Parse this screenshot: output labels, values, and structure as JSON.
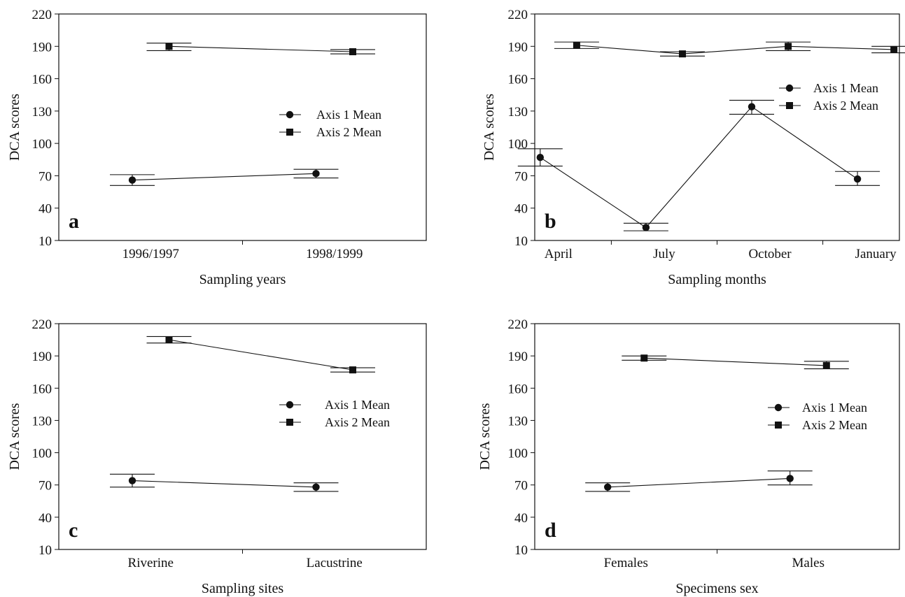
{
  "figure": {
    "panels": [
      {
        "id": "a",
        "letter": "a"
      },
      {
        "id": "b",
        "letter": "b"
      },
      {
        "id": "c",
        "letter": "c"
      },
      {
        "id": "d",
        "letter": "d"
      }
    ]
  },
  "chart_data": [
    {
      "type": "line",
      "panel": "a",
      "xlabel": "Sampling years",
      "ylabel": "DCA scores",
      "ylim": [
        10,
        220
      ],
      "yticks": [
        10,
        40,
        70,
        100,
        130,
        160,
        190,
        220
      ],
      "categories": [
        "1996/1997",
        "1998/1999"
      ],
      "legend": {
        "placement": "right-middle"
      },
      "series": [
        {
          "name": "Axis 1 Mean",
          "marker": "circle",
          "values": [
            66,
            72
          ],
          "err_low": [
            61,
            68
          ],
          "err_high": [
            71,
            76
          ],
          "offset": -0.05
        },
        {
          "name": "Axis 2 Mean",
          "marker": "square",
          "values": [
            190,
            185
          ],
          "err_low": [
            186,
            183
          ],
          "err_high": [
            193,
            187
          ],
          "offset": 0.05
        }
      ],
      "grid": false
    },
    {
      "type": "line",
      "panel": "b",
      "xlabel": "Sampling months",
      "ylabel": "DCA scores",
      "ylim": [
        10,
        220
      ],
      "yticks": [
        10,
        40,
        70,
        100,
        130,
        160,
        190,
        220
      ],
      "categories": [
        "April",
        "July",
        "October",
        "January"
      ],
      "legend": {
        "placement": "right-middle"
      },
      "series": [
        {
          "name": "Axis 1 Mean",
          "marker": "circle",
          "values": [
            87,
            22,
            134,
            67
          ],
          "err_low": [
            79,
            19,
            127,
            61
          ],
          "err_high": [
            95,
            26,
            140,
            74
          ],
          "offset": -0.05
        },
        {
          "name": "Axis 2 Mean",
          "marker": "square",
          "values": [
            191,
            183,
            190,
            187
          ],
          "err_low": [
            188,
            181,
            186,
            184
          ],
          "err_high": [
            194,
            185,
            194,
            190
          ],
          "offset": 0.05
        }
      ],
      "grid": false
    },
    {
      "type": "line",
      "panel": "c",
      "xlabel": "Sampling sites",
      "ylabel": "DCA scores",
      "ylim": [
        10,
        220
      ],
      "yticks": [
        10,
        40,
        70,
        100,
        130,
        160,
        190,
        220
      ],
      "categories": [
        "Riverine",
        "Lacustrine"
      ],
      "legend": {
        "placement": "right-middle"
      },
      "series": [
        {
          "name": "Axis 1 Mean",
          "marker": "circle",
          "values": [
            74,
            68
          ],
          "err_low": [
            68,
            64
          ],
          "err_high": [
            80,
            72
          ],
          "offset": -0.05
        },
        {
          "name": "Axis 2 Mean",
          "marker": "square",
          "values": [
            205,
            177
          ],
          "err_low": [
            202,
            175
          ],
          "err_high": [
            208,
            179
          ],
          "offset": 0.05
        }
      ],
      "grid": false
    },
    {
      "type": "line",
      "panel": "d",
      "xlabel": "Specimens sex",
      "ylabel": "DCA scores",
      "ylim": [
        10,
        220
      ],
      "yticks": [
        10,
        40,
        70,
        100,
        130,
        160,
        190,
        220
      ],
      "categories": [
        "Females",
        "Males"
      ],
      "legend": {
        "placement": "right-middle"
      },
      "series": [
        {
          "name": "Axis 1 Mean",
          "marker": "circle",
          "values": [
            68,
            76
          ],
          "err_low": [
            64,
            70
          ],
          "err_high": [
            72,
            83
          ],
          "offset": -0.05
        },
        {
          "name": "Axis 2 Mean",
          "marker": "square",
          "values": [
            188,
            181
          ],
          "err_low": [
            186,
            178
          ],
          "err_high": [
            190,
            185
          ],
          "offset": 0.05
        }
      ],
      "grid": false
    }
  ]
}
